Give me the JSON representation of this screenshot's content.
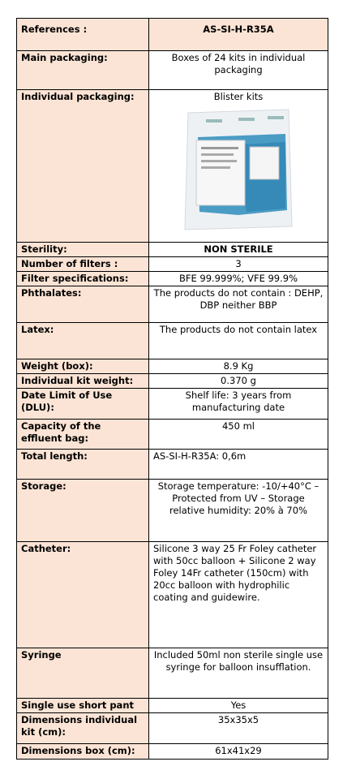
{
  "table": {
    "rows": [
      [
        "References :",
        "AS-SI-H-R35A"
      ],
      [
        "Main packaging:",
        "Boxes of 24 kits in individual packaging"
      ],
      [
        "Individual packaging:",
        "Blister kits"
      ],
      [
        "Sterility:",
        "NON STERILE"
      ],
      [
        "Number of filters :",
        "3"
      ],
      [
        "Filter specifications:",
        "BFE 99.999%; VFE 99.9%"
      ],
      [
        "Phthalates:",
        "The products do not contain : DEHP, DBP neither BBP"
      ],
      [
        "Latex:",
        "The products do not contain latex"
      ],
      [
        "Weight  (box):",
        "8.9 Kg"
      ],
      [
        "Individual kit weight:",
        "0.370 g"
      ],
      [
        "Date Limit of Use (DLU):",
        "Shelf life: 3 years from manufacturing date"
      ],
      [
        "Capacity of the effluent bag:",
        "450 ml"
      ],
      [
        "Total length:",
        "AS-SI-H-R35A: 0,6m"
      ],
      [
        "Storage:",
        "Storage temperature: -10/+40°C – Protected from UV – Storage relative humidity: 20% à 70%"
      ],
      [
        "Catheter:",
        "Silicone 3 way 25 Fr Foley catheter with 50cc balloon + Silicone 2 way Foley 14Fr catheter (150cm) with 20cc balloon with hydrophilic coating and guidewire."
      ],
      [
        "Syringe",
        "Included 50ml non sterile single use syringe for balloon insufflation."
      ],
      [
        "Single use short pant",
        "Yes"
      ],
      [
        "Dimensions individual kit (cm):",
        "35x35x5"
      ],
      [
        "Dimensions box (cm):",
        "61x41x29"
      ]
    ]
  }
}
